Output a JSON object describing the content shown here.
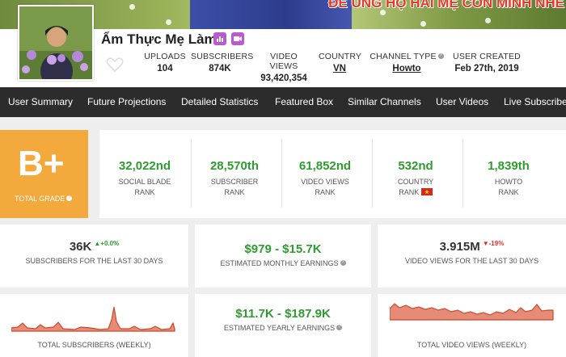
{
  "banner": {
    "text": "ĐỂ ỦNG HỘ HAI MẸ CON MÌNH NHÉ"
  },
  "channel": {
    "name": "Ẩm Thực Mẹ Làm"
  },
  "header_stats": [
    {
      "label": "UPLOADS",
      "value": "104"
    },
    {
      "label": "SUBSCRIBERS",
      "value": "874K"
    },
    {
      "label": "VIDEO VIEWS",
      "value": "93,420,354"
    },
    {
      "label": "COUNTRY",
      "value": "VN"
    },
    {
      "label": "CHANNEL TYPE",
      "value": "Howto"
    },
    {
      "label": "USER CREATED",
      "value": "Feb 27th, 2019"
    }
  ],
  "nav": [
    "User Summary",
    "Future Projections",
    "Detailed Statistics",
    "Featured Box",
    "Similar Channels",
    "User Videos",
    "Live Subscriber"
  ],
  "grade": {
    "value": "B+",
    "label": "TOTAL GRADE"
  },
  "ranks": [
    {
      "value": "32,022nd",
      "label1": "SOCIAL BLADE",
      "label2": "RANK"
    },
    {
      "value": "28,570th",
      "label1": "SUBSCRIBER",
      "label2": "RANK"
    },
    {
      "value": "61,852nd",
      "label1": "VIDEO VIEWS",
      "label2": "RANK"
    },
    {
      "value": "532nd",
      "label1": "COUNTRY",
      "label2": "RANK"
    },
    {
      "value": "1,839th",
      "label1": "HOWTO",
      "label2": "RANK"
    }
  ],
  "subs30": {
    "value": "36K",
    "change": "+0.0%",
    "label": "SUBSCRIBERS FOR THE LAST 30 DAYS"
  },
  "monthly": {
    "value": "$979 - $15.7K",
    "label": "ESTIMATED MONTHLY EARNINGS"
  },
  "views30": {
    "value": "3.915M",
    "change": "-19%",
    "label": "VIDEO VIEWS FOR THE LAST 30 DAYS"
  },
  "chart_subs": {
    "label": "TOTAL SUBSCRIBERS (WEEKLY)"
  },
  "yearly": {
    "value": "$11.7K - $187.9K",
    "label": "ESTIMATED YEARLY EARNINGS"
  },
  "chart_views": {
    "label": "TOTAL VIDEO VIEWS (WEEKLY)"
  },
  "colors": {
    "accent": "#f3a93c",
    "green": "#2e9c2e",
    "nav_bg": "#2c2c2c",
    "chart_red": "#d9583c",
    "badge": "#b95bcf"
  }
}
